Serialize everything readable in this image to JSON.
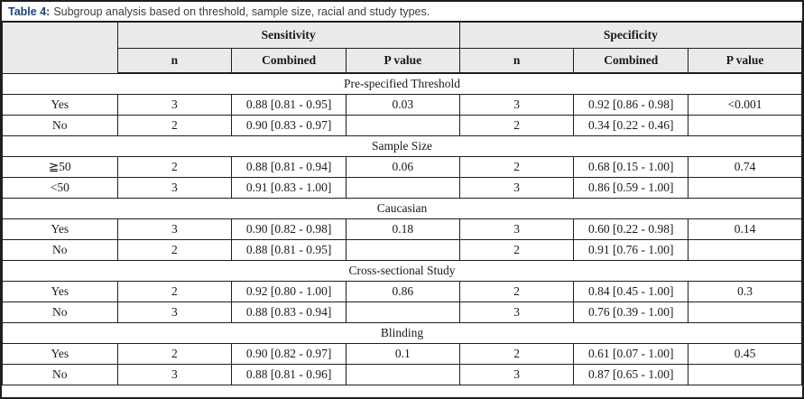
{
  "title": {
    "label": "Table 4:",
    "text": "Subgroup analysis based on threshold, sample size, racial and study types."
  },
  "colors": {
    "accent_blue": "#1d4180",
    "header_bg": "#eceae9",
    "border": "#1e1e1e",
    "title_text": "#3d3d3d"
  },
  "header": {
    "groups": [
      {
        "label": "Sensitivity"
      },
      {
        "label": "Specificity"
      }
    ],
    "subcolumns": [
      "n",
      "Combined",
      "P value"
    ]
  },
  "sections": [
    {
      "label": "Pre-specified Threshold",
      "rows": [
        {
          "label": "Yes",
          "sens": {
            "n": "3",
            "combined": "0.88 [0.81 - 0.95]",
            "p": "0.03"
          },
          "spec": {
            "n": "3",
            "combined": "0.92 [0.86 - 0.98]",
            "p": "<0.001"
          }
        },
        {
          "label": "No",
          "sens": {
            "n": "2",
            "combined": "0.90 [0.83 - 0.97]",
            "p": ""
          },
          "spec": {
            "n": "2",
            "combined": "0.34 [0.22 - 0.46]",
            "p": ""
          }
        }
      ]
    },
    {
      "label": "Sample Size",
      "rows": [
        {
          "label": "≧50",
          "sens": {
            "n": "2",
            "combined": "0.88 [0.81 - 0.94]",
            "p": "0.06"
          },
          "spec": {
            "n": "2",
            "combined": "0.68 [0.15 - 1.00]",
            "p": "0.74"
          }
        },
        {
          "label": "<50",
          "sens": {
            "n": "3",
            "combined": "0.91 [0.83 - 1.00]",
            "p": ""
          },
          "spec": {
            "n": "3",
            "combined": "0.86 [0.59 - 1.00]",
            "p": ""
          }
        }
      ]
    },
    {
      "label": "Caucasian",
      "rows": [
        {
          "label": "Yes",
          "sens": {
            "n": "3",
            "combined": "0.90 [0.82 - 0.98]",
            "p": "0.18"
          },
          "spec": {
            "n": "3",
            "combined": "0.60 [0.22 - 0.98]",
            "p": "0.14"
          }
        },
        {
          "label": "No",
          "sens": {
            "n": "2",
            "combined": "0.88 [0.81 - 0.95]",
            "p": ""
          },
          "spec": {
            "n": "2",
            "combined": "0.91 [0.76 - 1.00]",
            "p": ""
          }
        }
      ]
    },
    {
      "label": "Cross-sectional Study",
      "rows": [
        {
          "label": "Yes",
          "sens": {
            "n": "2",
            "combined": "0.92 [0.80 - 1.00]",
            "p": "0.86"
          },
          "spec": {
            "n": "2",
            "combined": "0.84 [0.45 - 1.00]",
            "p": "0.3"
          }
        },
        {
          "label": "No",
          "sens": {
            "n": "3",
            "combined": "0.88 [0.83 - 0.94]",
            "p": ""
          },
          "spec": {
            "n": "3",
            "combined": "0.76 [0.39 - 1.00]",
            "p": ""
          }
        }
      ]
    },
    {
      "label": "Blinding",
      "rows": [
        {
          "label": "Yes",
          "sens": {
            "n": "2",
            "combined": "0.90 [0.82 - 0.97]",
            "p": "0.1"
          },
          "spec": {
            "n": "2",
            "combined": "0.61 [0.07 - 1.00]",
            "p": "0.45"
          }
        },
        {
          "label": "No",
          "sens": {
            "n": "3",
            "combined": "0.88 [0.81 - 0.96]",
            "p": ""
          },
          "spec": {
            "n": "3",
            "combined": "0.87 [0.65 - 1.00]",
            "p": ""
          }
        }
      ]
    }
  ]
}
